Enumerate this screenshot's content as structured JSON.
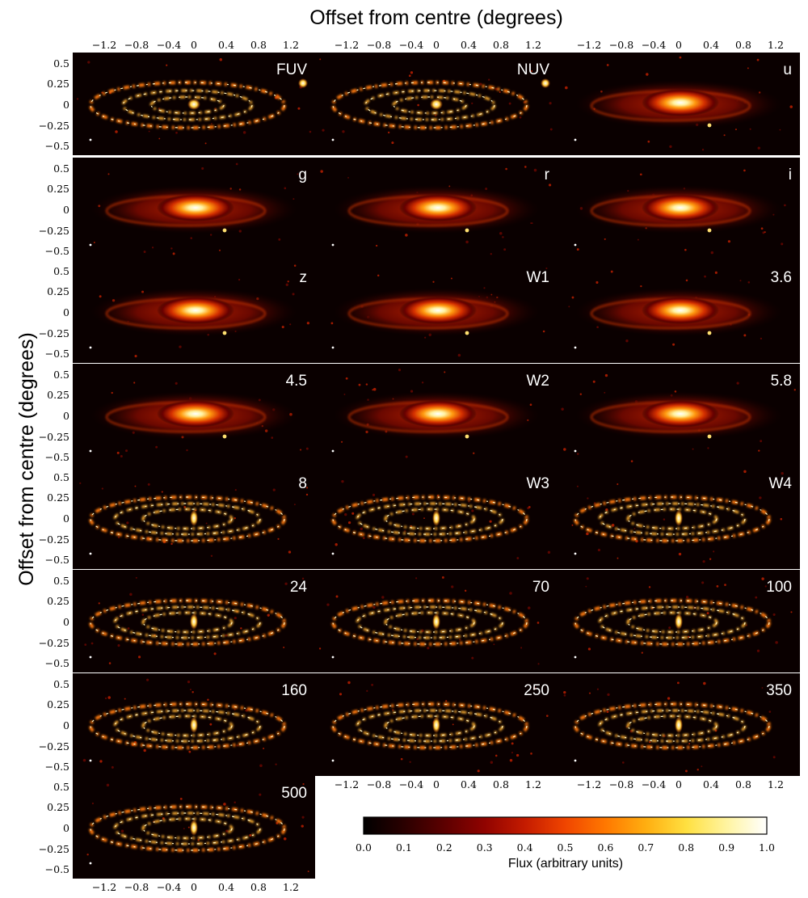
{
  "figure": {
    "top_title": "Offset from centre (degrees)",
    "left_title": "Offset from centre (degrees)",
    "x_ticks": [
      "−1.2",
      "−0.8",
      "−0.4",
      "0",
      "0.4",
      "0.8",
      "1.2"
    ],
    "y_ticks": [
      "0.5",
      "0.25",
      "0",
      "−0.25",
      "−0.5"
    ],
    "panels": [
      {
        "label": "FUV",
        "style": "uv"
      },
      {
        "label": "NUV",
        "style": "uv"
      },
      {
        "label": "u",
        "style": "bulge"
      },
      {
        "label": "g",
        "style": "bulge"
      },
      {
        "label": "r",
        "style": "bulge"
      },
      {
        "label": "i",
        "style": "bulge"
      },
      {
        "label": "z",
        "style": "bulge"
      },
      {
        "label": "W1",
        "style": "bulge"
      },
      {
        "label": "3.6",
        "style": "bulge"
      },
      {
        "label": "4.5",
        "style": "bulge"
      },
      {
        "label": "W2",
        "style": "bulge"
      },
      {
        "label": "5.8",
        "style": "mixed"
      },
      {
        "label": "8",
        "style": "ring"
      },
      {
        "label": "W3",
        "style": "ring"
      },
      {
        "label": "W4",
        "style": "ring"
      },
      {
        "label": "24",
        "style": "ring"
      },
      {
        "label": "70",
        "style": "ring"
      },
      {
        "label": "100",
        "style": "ring"
      },
      {
        "label": "160",
        "style": "ring"
      },
      {
        "label": "250",
        "style": "ring"
      },
      {
        "label": "350",
        "style": "ring"
      },
      {
        "label": "500",
        "style": "ring"
      }
    ],
    "colorbar": {
      "label": "Flux (arbitrary units)",
      "ticks": [
        "0.0",
        "0.1",
        "0.2",
        "0.3",
        "0.4",
        "0.5",
        "0.6",
        "0.7",
        "0.8",
        "0.9",
        "1.0"
      ],
      "colors": [
        "#000000",
        "#2a0000",
        "#5c0000",
        "#900300",
        "#c41b00",
        "#f04500",
        "#ff7800",
        "#ffae10",
        "#ffe040",
        "#fff4a0",
        "#ffffff"
      ]
    }
  }
}
